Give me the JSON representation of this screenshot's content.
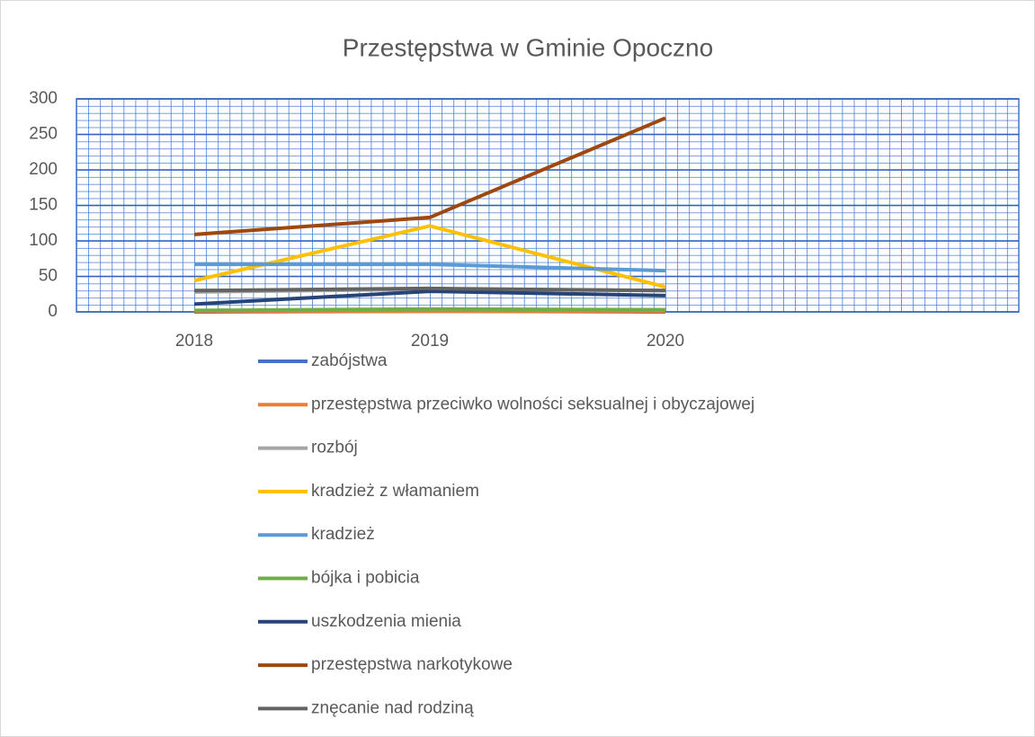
{
  "chart_data": {
    "type": "line",
    "title": "Przestępstwa w Gminie Opoczno",
    "categories": [
      "2018",
      "2019",
      "2020",
      null
    ],
    "ylim": [
      0,
      300
    ],
    "yticks": [
      0,
      50,
      100,
      150,
      200,
      250,
      300
    ],
    "grid": true,
    "series": [
      {
        "name": "zabójstwa",
        "color": "#4472c4",
        "values": [
          0,
          1,
          0,
          null
        ]
      },
      {
        "name": "przestępstwa przeciwko wolności seksualnej i obyczajowej",
        "color": "#ed7d31",
        "values": [
          1,
          1,
          1,
          null
        ]
      },
      {
        "name": "rozbój",
        "color": "#a5a5a5",
        "values": [
          28,
          32,
          30,
          null
        ]
      },
      {
        "name": "kradzież z włamaniem",
        "color": "#ffc000",
        "values": [
          44,
          121,
          35,
          null
        ]
      },
      {
        "name": "kradzież",
        "color": "#5b9bd5",
        "values": [
          67,
          67,
          58,
          null
        ]
      },
      {
        "name": "bójka i pobicia",
        "color": "#70ad47",
        "values": [
          2,
          4,
          3,
          null
        ]
      },
      {
        "name": "uszkodzenia mienia",
        "color": "#264478",
        "values": [
          11,
          29,
          23,
          null
        ]
      },
      {
        "name": "przestępstwa narkotykowe",
        "color": "#9e480e",
        "values": [
          109,
          133,
          273,
          null
        ]
      },
      {
        "name": "znęcanie nad rodziną",
        "color": "#636363",
        "values": [
          30,
          33,
          30,
          null
        ]
      }
    ]
  }
}
